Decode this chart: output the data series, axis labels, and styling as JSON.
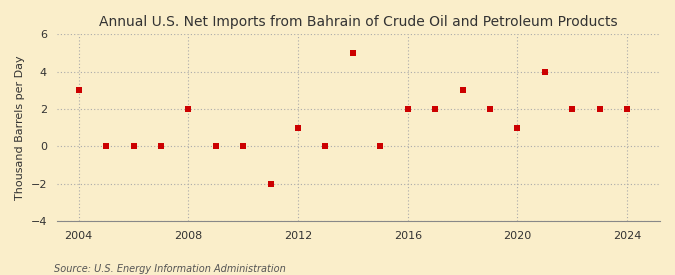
{
  "title": "Annual U.S. Net Imports from Bahrain of Crude Oil and Petroleum Products",
  "ylabel": "Thousand Barrels per Day",
  "source": "Source: U.S. Energy Information Administration",
  "years": [
    2004,
    2005,
    2006,
    2007,
    2008,
    2009,
    2010,
    2011,
    2012,
    2013,
    2014,
    2015,
    2016,
    2017,
    2018,
    2019,
    2020,
    2021,
    2022,
    2023,
    2024
  ],
  "values": [
    3,
    0,
    0,
    0,
    2,
    0,
    0,
    -2,
    1,
    0,
    5,
    0,
    2,
    2,
    3,
    2,
    1,
    4,
    2,
    2,
    2
  ],
  "marker_color": "#cc0000",
  "marker_size": 5,
  "ylim": [
    -4,
    6
  ],
  "yticks": [
    -4,
    -2,
    0,
    2,
    4,
    6
  ],
  "xticks": [
    2004,
    2008,
    2012,
    2016,
    2020,
    2024
  ],
  "xlim": [
    2003.2,
    2025.2
  ],
  "grid_color": "#aaaaaa",
  "bg_color": "#faeeca",
  "title_fontsize": 10,
  "label_fontsize": 8,
  "tick_fontsize": 8,
  "source_fontsize": 7
}
